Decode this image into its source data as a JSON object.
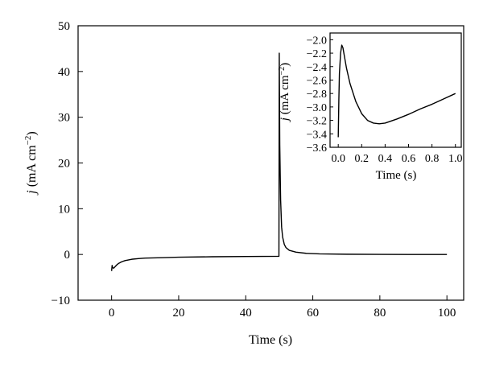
{
  "chart_data": [
    {
      "type": "line",
      "xlabel": "Time (s)",
      "ylabel_italic": "j",
      "ylabel_unit": " (mA cm",
      "ylabel_sup": "−2",
      "ylabel_close": ")",
      "xlim": [
        -10,
        105
      ],
      "ylim": [
        -10,
        50
      ],
      "xticks": [
        0,
        20,
        40,
        60,
        80,
        100
      ],
      "yticks": [
        -10,
        0,
        10,
        20,
        30,
        40,
        50
      ],
      "series": [
        {
          "x": [
            0,
            0.15,
            0.3,
            0.6,
            1,
            1.5,
            2,
            3,
            4,
            6,
            8,
            10,
            15,
            20,
            30,
            40,
            49.9,
            50.0,
            50.15,
            50.4,
            50.7,
            51,
            51.5,
            52,
            53,
            55,
            58,
            62,
            70,
            80,
            90,
            100
          ],
          "y": [
            -3.6,
            -2.4,
            -2.9,
            -3.0,
            -2.7,
            -2.3,
            -2.0,
            -1.6,
            -1.35,
            -1.05,
            -0.9,
            -0.8,
            -0.7,
            -0.6,
            -0.5,
            -0.45,
            -0.4,
            44,
            24,
            12,
            6,
            3.8,
            2.2,
            1.5,
            0.9,
            0.5,
            0.25,
            0.12,
            0.05,
            0.02,
            0.0,
            0.0
          ]
        }
      ]
    },
    {
      "type": "line",
      "xlabel": "Time (s)",
      "ylabel_italic": "j",
      "ylabel_unit": " (mA cm",
      "ylabel_sup": "−2",
      "ylabel_close": ")",
      "xlim": [
        -0.07,
        1.05
      ],
      "ylim": [
        -3.6,
        -1.9
      ],
      "xticks": [
        0.0,
        0.2,
        0.4,
        0.6,
        0.8,
        1.0
      ],
      "xtick_labels": [
        "0.0",
        "0.2",
        "0.4",
        "0.6",
        "0.8",
        "1.0"
      ],
      "yticks": [
        -2.0,
        -2.2,
        -2.4,
        -2.6,
        -2.8,
        -3.0,
        -3.2,
        -3.4,
        -3.6
      ],
      "ytick_labels": [
        "−2.0",
        "−2.2",
        "−2.4",
        "−2.6",
        "−2.8",
        "−3.0",
        "−3.2",
        "−3.4",
        "−3.6"
      ],
      "series": [
        {
          "x": [
            0.0,
            0.005,
            0.01,
            0.02,
            0.03,
            0.04,
            0.05,
            0.07,
            0.1,
            0.15,
            0.2,
            0.25,
            0.3,
            0.35,
            0.4,
            0.5,
            0.6,
            0.7,
            0.8,
            0.9,
            1.0
          ],
          "y": [
            -3.45,
            -2.9,
            -2.5,
            -2.2,
            -2.08,
            -2.12,
            -2.22,
            -2.42,
            -2.65,
            -2.92,
            -3.1,
            -3.2,
            -3.24,
            -3.25,
            -3.24,
            -3.18,
            -3.11,
            -3.03,
            -2.96,
            -2.88,
            -2.8
          ]
        }
      ]
    }
  ]
}
